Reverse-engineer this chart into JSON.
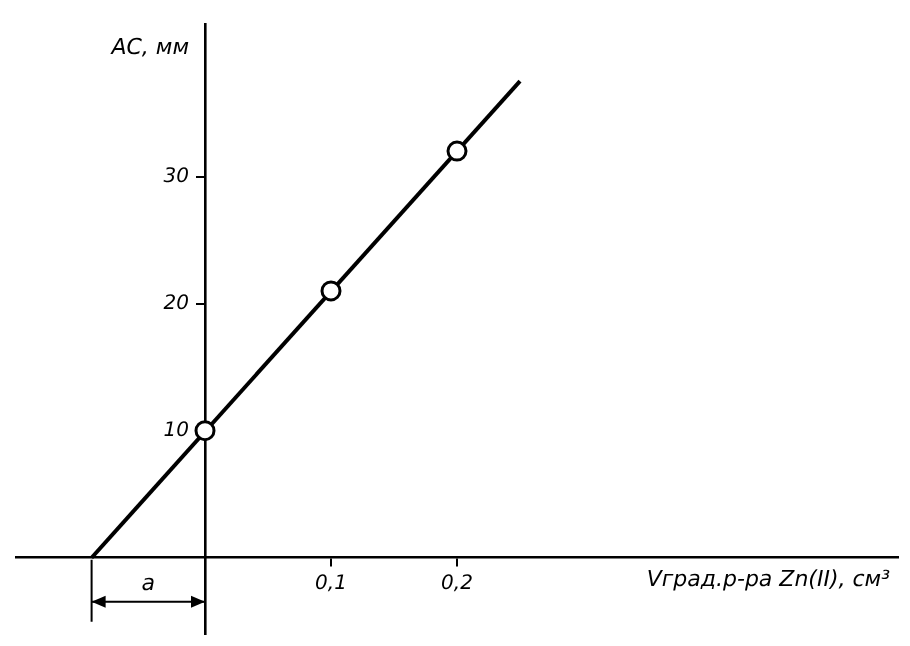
{
  "chart_data": {
    "type": "scatter",
    "ylabel": "AC, мм",
    "xlabel": "Vград.р-ра Zn(II), см³",
    "xlim": [
      -0.15,
      0.55
    ],
    "ylim": [
      -6,
      42
    ],
    "xticks": [
      {
        "value": 0.1,
        "label": "0,1"
      },
      {
        "value": 0.2,
        "label": "0,2"
      }
    ],
    "yticks": [
      10,
      20,
      30
    ],
    "grid": false,
    "legend": false,
    "series": [
      {
        "color": "#000000",
        "marker": "circle",
        "x": [
          0,
          0.1,
          0.2
        ],
        "values": [
          10,
          21,
          32
        ]
      },
      {
        "type": "line",
        "color": "#000000",
        "marker": "none",
        "x": [
          -0.09,
          0.25
        ],
        "values": [
          0,
          37.5
        ]
      }
    ],
    "annotations": [
      "a"
    ]
  }
}
